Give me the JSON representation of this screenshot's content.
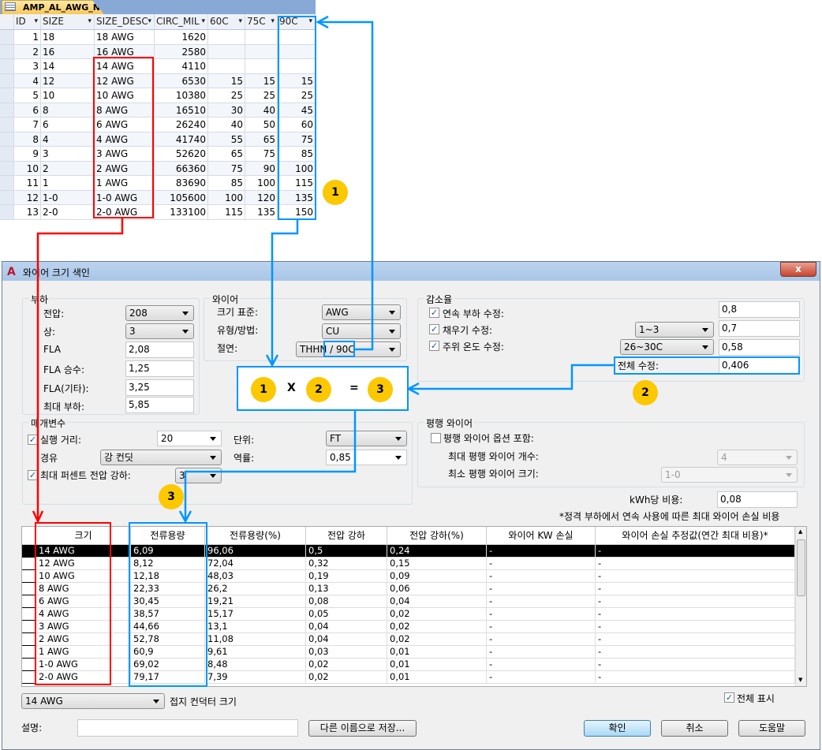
{
  "access_table": {
    "tab_title": "AMP_AL_AWG_NEC",
    "columns": [
      "ID",
      "SIZE",
      "SIZE_DESC",
      "CIRC_MIL",
      "60C",
      "75C",
      "90C"
    ],
    "rows": [
      [
        "1",
        "18",
        "18 AWG",
        "1620",
        "",
        "",
        ""
      ],
      [
        "2",
        "16",
        "16 AWG",
        "2580",
        "",
        "",
        ""
      ],
      [
        "3",
        "14",
        "14 AWG",
        "4110",
        "",
        "",
        ""
      ],
      [
        "4",
        "12",
        "12 AWG",
        "6530",
        "15",
        "15",
        "15"
      ],
      [
        "5",
        "10",
        "10 AWG",
        "10380",
        "25",
        "25",
        "25"
      ],
      [
        "6",
        "8",
        "8 AWG",
        "16510",
        "30",
        "40",
        "45"
      ],
      [
        "7",
        "6",
        "6 AWG",
        "26240",
        "40",
        "50",
        "60"
      ],
      [
        "8",
        "4",
        "4 AWG",
        "41740",
        "55",
        "65",
        "75"
      ],
      [
        "9",
        "3",
        "3 AWG",
        "52620",
        "65",
        "75",
        "85"
      ],
      [
        "10",
        "2",
        "2 AWG",
        "66360",
        "75",
        "90",
        "100"
      ],
      [
        "11",
        "1",
        "1 AWG",
        "83690",
        "85",
        "100",
        "115"
      ],
      [
        "12",
        "1-0",
        "1-0 AWG",
        "105600",
        "100",
        "120",
        "135"
      ],
      [
        "13",
        "2-0",
        "2-0 AWG",
        "133100",
        "115",
        "135",
        "150"
      ]
    ]
  },
  "dialog": {
    "title": "와이어 크기 색인",
    "close": "x",
    "load": {
      "title": "부하",
      "voltage_label": "전압:",
      "voltage": "208",
      "phase_label": "상:",
      "phase": "3",
      "fla_label": "FLA",
      "fla": "2,08",
      "fla_mult_label": "FLA 승수:",
      "fla_mult": "1,25",
      "fla_other_label": "FLA(기타):",
      "fla_other": "3,25",
      "max_load_label": "최대 부하:",
      "max_load": "5,85"
    },
    "wire": {
      "title": "와이어",
      "size_std_label": "크기 표준:",
      "size_std": "AWG",
      "type_label": "유형/방법:",
      "type": "CU",
      "insul_label": "절연:",
      "insul": "THHN / 90C"
    },
    "derate": {
      "title": "감소율",
      "cont_label": "연속 부하 수정:",
      "cont": "0,8",
      "fill_label": "채우기 수정:",
      "fill_sel": "1~3",
      "fill": "0,7",
      "ambient_label": "주위 온도 수정:",
      "ambient_sel": "26~30C",
      "ambient": "0,58",
      "total_label": "전체 수정:",
      "total": "0,406"
    },
    "params": {
      "title": "매개변수",
      "run_label": "실행 거리:",
      "run": "20",
      "unit_label": "단위:",
      "unit": "FT",
      "via_label": "경유",
      "via": "강 컨딧",
      "pf_label": "역률:",
      "pf": "0,85",
      "maxvd_label": "최대 퍼센트 전압 강하:",
      "maxvd": "3"
    },
    "parallel": {
      "title": "평행 와이어",
      "include_label": "평행 와이어 옵션 포함:",
      "max_count_label": "최대 평행 와이어 개수:",
      "max_count": "4",
      "min_size_label": "최소 평행 와이어 크기:",
      "min_size": "1-0"
    },
    "kwh_label": "kWh당 비용:",
    "kwh": "0,08",
    "note": "*정격 부하에서 연속 사용에 따른 최대 와이어 손실 비용",
    "grid": {
      "columns": [
        "크기",
        "전류용량",
        "전류용량(%)",
        "전압 강하",
        "전압 강하(%)",
        "와이어 KW 손실",
        "와이어 손실 추정값(연간 최대 비용)*"
      ],
      "rows": [
        [
          "14 AWG",
          "6,09",
          "96,06",
          "0,5",
          "0,24",
          "-",
          "-"
        ],
        [
          "12 AWG",
          "8,12",
          "72,04",
          "0,32",
          "0,15",
          "-",
          "-"
        ],
        [
          "10 AWG",
          "12,18",
          "48,03",
          "0,19",
          "0,09",
          "-",
          "-"
        ],
        [
          "8 AWG",
          "22,33",
          "26,2",
          "0,13",
          "0,06",
          "-",
          "-"
        ],
        [
          "6 AWG",
          "30,45",
          "19,21",
          "0,08",
          "0,04",
          "-",
          "-"
        ],
        [
          "4 AWG",
          "38,57",
          "15,17",
          "0,05",
          "0,02",
          "-",
          "-"
        ],
        [
          "3 AWG",
          "44,66",
          "13,1",
          "0,04",
          "0,02",
          "-",
          "-"
        ],
        [
          "2 AWG",
          "52,78",
          "11,08",
          "0,04",
          "0,02",
          "-",
          "-"
        ],
        [
          "1 AWG",
          "60,9",
          "9,61",
          "0,03",
          "0,01",
          "-",
          "-"
        ],
        [
          "1-0 AWG",
          "69,02",
          "8,48",
          "0,02",
          "0,01",
          "-",
          "-"
        ],
        [
          "2-0 AWG",
          "79,17",
          "7,39",
          "0,02",
          "0,01",
          "-",
          "-"
        ]
      ]
    },
    "ground_size": "14 AWG",
    "ground_label": "접지 컨덕터 크기",
    "show_all_label": "전체 표시",
    "desc_label": "설명:",
    "desc": "",
    "save_as": "다른 이름으로 저장...",
    "ok": "확인",
    "cancel": "취소",
    "help": "도움말"
  },
  "annotations": {
    "formula": [
      "1",
      "X",
      "2",
      "=",
      "3"
    ],
    "badge1": "1",
    "badge2": "2",
    "badge3": "3",
    "colors": {
      "red": "#ff0000",
      "blue": "#0096ff",
      "badge": "#fcc800"
    }
  }
}
